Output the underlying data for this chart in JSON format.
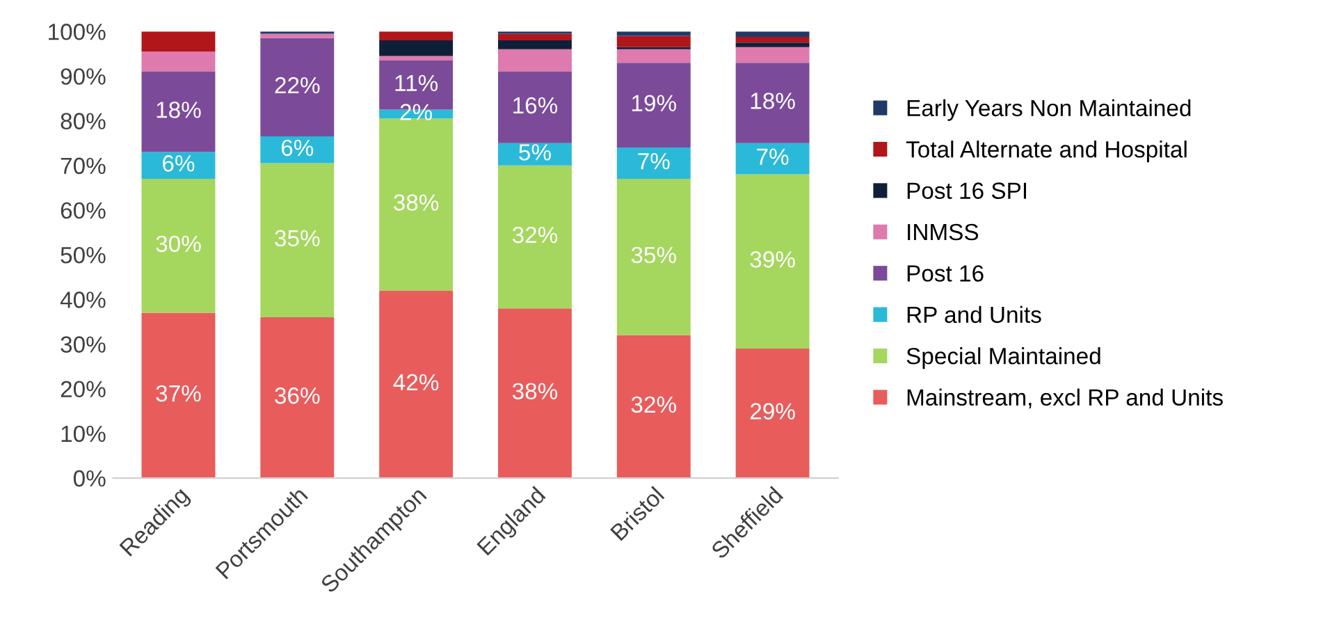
{
  "chart_data": {
    "type": "bar",
    "stacked": true,
    "categories": [
      "Reading",
      "Portsmouth",
      "Southampton",
      "England",
      "Bristol",
      "Sheffield"
    ],
    "ylim": [
      0,
      100
    ],
    "yticks": [
      {
        "value": 0,
        "label": "0%"
      },
      {
        "value": 10,
        "label": "10%"
      },
      {
        "value": 20,
        "label": "20%"
      },
      {
        "value": 30,
        "label": "30%"
      },
      {
        "value": 40,
        "label": "40%"
      },
      {
        "value": 50,
        "label": "50%"
      },
      {
        "value": 60,
        "label": "60%"
      },
      {
        "value": 70,
        "label": "70%"
      },
      {
        "value": 80,
        "label": "80%"
      },
      {
        "value": 90,
        "label": "90%"
      },
      {
        "value": 100,
        "label": "100%"
      }
    ],
    "grid": false,
    "legend": "right",
    "series": [
      {
        "name": "Mainstream, excl RP and Units",
        "color": "#e95c5c",
        "values": [
          37,
          36,
          42,
          38,
          32,
          29
        ],
        "value_labels": [
          "37%",
          "36%",
          "42%",
          "38%",
          "32%",
          "29%"
        ]
      },
      {
        "name": "Special Maintained",
        "color": "#a5d65e",
        "values": [
          30,
          34.5,
          38.5,
          32,
          35,
          39
        ],
        "value_labels": [
          "30%",
          "35%",
          "38%",
          "32%",
          "35%",
          "39%"
        ]
      },
      {
        "name": "RP and Units",
        "color": "#2bb9d9",
        "values": [
          6,
          6,
          2,
          5,
          7,
          7
        ],
        "value_labels": [
          "6%",
          "6%",
          "2%",
          "5%",
          "7%",
          "7%"
        ]
      },
      {
        "name": "Post 16",
        "color": "#7b4b9a",
        "values": [
          18,
          22,
          11,
          16,
          19,
          18
        ],
        "value_labels": [
          "18%",
          "22%",
          "11%",
          "16%",
          "19%",
          "18%"
        ]
      },
      {
        "name": "INMSS",
        "color": "#de7aad",
        "values": [
          4.5,
          1,
          1,
          5,
          3,
          3.5
        ]
      },
      {
        "name": "Post 16 SPI",
        "color": "#0f1f3a",
        "values": [
          0,
          0,
          3.5,
          2,
          0.5,
          1
        ]
      },
      {
        "name": "Total Alternate and Hospital",
        "color": "#b0161a",
        "values": [
          4.5,
          0,
          2,
          1.5,
          2.5,
          1.3
        ]
      },
      {
        "name": "Early Years Non Maintained",
        "color": "#1f3a66",
        "values": [
          0,
          0.5,
          0,
          0.5,
          1,
          1.2
        ]
      }
    ]
  }
}
